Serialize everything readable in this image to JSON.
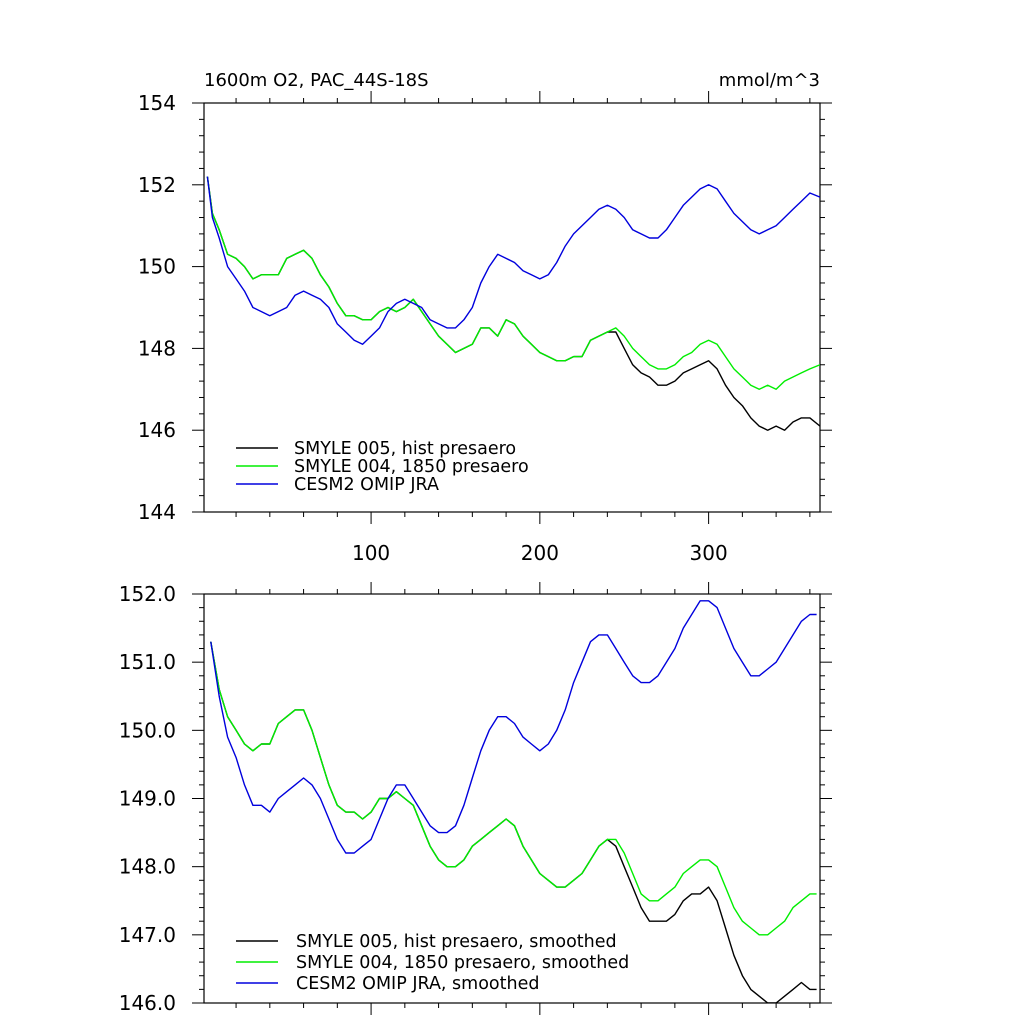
{
  "chart_data": [
    {
      "type": "line",
      "title": "1600m O2, PAC_44S-18S",
      "units": "mmol/m^3",
      "xlabel": "",
      "ylabel": "",
      "xlim": [
        1,
        366
      ],
      "ylim": [
        144,
        154
      ],
      "x_ticks": [
        100,
        200,
        300
      ],
      "x_tick_labels": [
        "100",
        "200",
        "300"
      ],
      "y_ticks": [
        144,
        146,
        148,
        150,
        152,
        154
      ],
      "y_tick_labels": [
        "144",
        "146",
        "148",
        "150",
        "152",
        "154"
      ],
      "legend_position": "bottom-left",
      "series": [
        {
          "name": "SMYLE 005, hist presaero",
          "color": "#000000",
          "x": [
            3,
            6,
            10,
            15,
            20,
            25,
            30,
            35,
            40,
            45,
            50,
            55,
            60,
            65,
            70,
            75,
            80,
            85,
            90,
            95,
            100,
            105,
            110,
            115,
            120,
            125,
            130,
            135,
            140,
            145,
            150,
            155,
            160,
            165,
            170,
            175,
            180,
            185,
            190,
            195,
            200,
            205,
            210,
            215,
            220,
            225,
            230,
            235,
            240,
            245,
            250,
            255,
            260,
            265,
            270,
            275,
            280,
            285,
            290,
            295,
            300,
            305,
            310,
            315,
            320,
            325,
            330,
            335,
            340,
            345,
            350,
            355,
            360,
            366
          ],
          "y": [
            152.2,
            151.3,
            150.9,
            150.3,
            150.2,
            150.0,
            149.7,
            149.8,
            149.8,
            149.8,
            150.2,
            150.3,
            150.4,
            150.2,
            149.8,
            149.5,
            149.1,
            148.8,
            148.8,
            148.7,
            148.7,
            148.9,
            149.0,
            148.9,
            149.0,
            149.2,
            148.9,
            148.6,
            148.3,
            148.1,
            147.9,
            148.0,
            148.1,
            148.5,
            148.5,
            148.3,
            148.7,
            148.6,
            148.3,
            148.1,
            147.9,
            147.8,
            147.7,
            147.7,
            147.8,
            147.8,
            148.2,
            148.3,
            148.4,
            148.4,
            148.0,
            147.6,
            147.4,
            147.3,
            147.1,
            147.1,
            147.2,
            147.4,
            147.5,
            147.6,
            147.7,
            147.5,
            147.1,
            146.8,
            146.6,
            146.3,
            146.1,
            146.0,
            146.1,
            146.0,
            146.2,
            146.3,
            146.3,
            146.1
          ]
        },
        {
          "name": "SMYLE 004, 1850 presaero",
          "color": "#00ee00",
          "x": [
            3,
            6,
            10,
            15,
            20,
            25,
            30,
            35,
            40,
            45,
            50,
            55,
            60,
            65,
            70,
            75,
            80,
            85,
            90,
            95,
            100,
            105,
            110,
            115,
            120,
            125,
            130,
            135,
            140,
            145,
            150,
            155,
            160,
            165,
            170,
            175,
            180,
            185,
            190,
            195,
            200,
            205,
            210,
            215,
            220,
            225,
            230,
            235,
            240,
            245,
            250,
            255,
            260,
            265,
            270,
            275,
            280,
            285,
            290,
            295,
            300,
            305,
            310,
            315,
            320,
            325,
            330,
            335,
            340,
            345,
            350,
            355,
            360,
            366
          ],
          "y": [
            152.2,
            151.3,
            150.9,
            150.3,
            150.2,
            150.0,
            149.7,
            149.8,
            149.8,
            149.8,
            150.2,
            150.3,
            150.4,
            150.2,
            149.8,
            149.5,
            149.1,
            148.8,
            148.8,
            148.7,
            148.7,
            148.9,
            149.0,
            148.9,
            149.0,
            149.2,
            148.9,
            148.6,
            148.3,
            148.1,
            147.9,
            148.0,
            148.1,
            148.5,
            148.5,
            148.3,
            148.7,
            148.6,
            148.3,
            148.1,
            147.9,
            147.8,
            147.7,
            147.7,
            147.8,
            147.8,
            148.2,
            148.3,
            148.4,
            148.5,
            148.3,
            148.0,
            147.8,
            147.6,
            147.5,
            147.5,
            147.6,
            147.8,
            147.9,
            148.1,
            148.2,
            148.1,
            147.8,
            147.5,
            147.3,
            147.1,
            147.0,
            147.1,
            147.0,
            147.2,
            147.3,
            147.4,
            147.5,
            147.6
          ]
        },
        {
          "name": "CESM2 OMIP JRA",
          "color": "#0000dd",
          "x": [
            3,
            6,
            10,
            15,
            20,
            25,
            30,
            35,
            40,
            45,
            50,
            55,
            60,
            65,
            70,
            75,
            80,
            85,
            90,
            95,
            100,
            105,
            110,
            115,
            120,
            125,
            130,
            135,
            140,
            145,
            150,
            155,
            160,
            165,
            170,
            175,
            180,
            185,
            190,
            195,
            200,
            205,
            210,
            215,
            220,
            225,
            230,
            235,
            240,
            245,
            250,
            255,
            260,
            265,
            270,
            275,
            280,
            285,
            290,
            295,
            300,
            305,
            310,
            315,
            320,
            325,
            330,
            335,
            340,
            345,
            350,
            355,
            360,
            366
          ],
          "y": [
            152.2,
            151.2,
            150.7,
            150.0,
            149.7,
            149.4,
            149.0,
            148.9,
            148.8,
            148.9,
            149.0,
            149.3,
            149.4,
            149.3,
            149.2,
            149.0,
            148.6,
            148.4,
            148.2,
            148.1,
            148.3,
            148.5,
            148.9,
            149.1,
            149.2,
            149.1,
            149.0,
            148.7,
            148.6,
            148.5,
            148.5,
            148.7,
            149.0,
            149.6,
            150.0,
            150.3,
            150.2,
            150.1,
            149.9,
            149.8,
            149.7,
            149.8,
            150.1,
            150.5,
            150.8,
            151.0,
            151.2,
            151.4,
            151.5,
            151.4,
            151.2,
            150.9,
            150.8,
            150.7,
            150.7,
            150.9,
            151.2,
            151.5,
            151.7,
            151.9,
            152.0,
            151.9,
            151.6,
            151.3,
            151.1,
            150.9,
            150.8,
            150.9,
            151.0,
            151.2,
            151.4,
            151.6,
            151.8,
            151.7
          ]
        }
      ]
    },
    {
      "type": "line",
      "title": "",
      "xlabel": "",
      "ylabel": "",
      "xlim": [
        1,
        366
      ],
      "ylim": [
        146.0,
        152.0
      ],
      "x_ticks": [
        100,
        200,
        300
      ],
      "x_tick_labels": [
        "",
        "",
        ""
      ],
      "y_ticks": [
        146,
        147,
        148,
        149,
        150,
        151,
        152
      ],
      "y_tick_labels": [
        "146.0",
        "147.0",
        "148.0",
        "149.0",
        "150.0",
        "151.0",
        "152.0"
      ],
      "legend_position": "bottom-left",
      "series": [
        {
          "name": "SMYLE 005, hist presaero, smoothed",
          "color": "#000000",
          "x": [
            5,
            10,
            15,
            20,
            25,
            30,
            35,
            40,
            45,
            50,
            55,
            60,
            65,
            70,
            75,
            80,
            85,
            90,
            95,
            100,
            105,
            110,
            115,
            120,
            125,
            130,
            135,
            140,
            145,
            150,
            155,
            160,
            165,
            170,
            175,
            180,
            185,
            190,
            195,
            200,
            205,
            210,
            215,
            220,
            225,
            230,
            235,
            240,
            245,
            250,
            255,
            260,
            265,
            270,
            275,
            280,
            285,
            290,
            295,
            300,
            305,
            310,
            315,
            320,
            325,
            330,
            335,
            340,
            345,
            350,
            355,
            360,
            364
          ],
          "y": [
            151.3,
            150.6,
            150.2,
            150.0,
            149.8,
            149.7,
            149.8,
            149.8,
            150.1,
            150.2,
            150.3,
            150.3,
            150.0,
            149.6,
            149.2,
            148.9,
            148.8,
            148.8,
            148.7,
            148.8,
            149.0,
            149.0,
            149.1,
            149.0,
            148.9,
            148.6,
            148.3,
            148.1,
            148.0,
            148.0,
            148.1,
            148.3,
            148.4,
            148.5,
            148.6,
            148.7,
            148.6,
            148.3,
            148.1,
            147.9,
            147.8,
            147.7,
            147.7,
            147.8,
            147.9,
            148.1,
            148.3,
            148.4,
            148.3,
            148.0,
            147.7,
            147.4,
            147.2,
            147.2,
            147.2,
            147.3,
            147.5,
            147.6,
            147.6,
            147.7,
            147.5,
            147.1,
            146.7,
            146.4,
            146.2,
            146.1,
            146.0,
            146.0,
            146.1,
            146.2,
            146.3,
            146.2,
            146.2
          ]
        },
        {
          "name": "SMYLE 004, 1850 presaero, smoothed",
          "color": "#00ee00",
          "x": [
            5,
            10,
            15,
            20,
            25,
            30,
            35,
            40,
            45,
            50,
            55,
            60,
            65,
            70,
            75,
            80,
            85,
            90,
            95,
            100,
            105,
            110,
            115,
            120,
            125,
            130,
            135,
            140,
            145,
            150,
            155,
            160,
            165,
            170,
            175,
            180,
            185,
            190,
            195,
            200,
            205,
            210,
            215,
            220,
            225,
            230,
            235,
            240,
            245,
            250,
            255,
            260,
            265,
            270,
            275,
            280,
            285,
            290,
            295,
            300,
            305,
            310,
            315,
            320,
            325,
            330,
            335,
            340,
            345,
            350,
            355,
            360,
            364
          ],
          "y": [
            151.3,
            150.6,
            150.2,
            150.0,
            149.8,
            149.7,
            149.8,
            149.8,
            150.1,
            150.2,
            150.3,
            150.3,
            150.0,
            149.6,
            149.2,
            148.9,
            148.8,
            148.8,
            148.7,
            148.8,
            149.0,
            149.0,
            149.1,
            149.0,
            148.9,
            148.6,
            148.3,
            148.1,
            148.0,
            148.0,
            148.1,
            148.3,
            148.4,
            148.5,
            148.6,
            148.7,
            148.6,
            148.3,
            148.1,
            147.9,
            147.8,
            147.7,
            147.7,
            147.8,
            147.9,
            148.1,
            148.3,
            148.4,
            148.4,
            148.2,
            147.9,
            147.6,
            147.5,
            147.5,
            147.6,
            147.7,
            147.9,
            148.0,
            148.1,
            148.1,
            148.0,
            147.7,
            147.4,
            147.2,
            147.1,
            147.0,
            147.0,
            147.1,
            147.2,
            147.4,
            147.5,
            147.6,
            147.6
          ]
        },
        {
          "name": "CESM2 OMIP JRA, smoothed",
          "color": "#0000dd",
          "x": [
            5,
            10,
            15,
            20,
            25,
            30,
            35,
            40,
            45,
            50,
            55,
            60,
            65,
            70,
            75,
            80,
            85,
            90,
            95,
            100,
            105,
            110,
            115,
            120,
            125,
            130,
            135,
            140,
            145,
            150,
            155,
            160,
            165,
            170,
            175,
            180,
            185,
            190,
            195,
            200,
            205,
            210,
            215,
            220,
            225,
            230,
            235,
            240,
            245,
            250,
            255,
            260,
            265,
            270,
            275,
            280,
            285,
            290,
            295,
            300,
            305,
            310,
            315,
            320,
            325,
            330,
            335,
            340,
            345,
            350,
            355,
            360,
            364
          ],
          "y": [
            151.3,
            150.5,
            149.9,
            149.6,
            149.2,
            148.9,
            148.9,
            148.8,
            149.0,
            149.1,
            149.2,
            149.3,
            149.2,
            149.0,
            148.7,
            148.4,
            148.2,
            148.2,
            148.3,
            148.4,
            148.7,
            149.0,
            149.2,
            149.2,
            149.0,
            148.8,
            148.6,
            148.5,
            148.5,
            148.6,
            148.9,
            149.3,
            149.7,
            150.0,
            150.2,
            150.2,
            150.1,
            149.9,
            149.8,
            149.7,
            149.8,
            150.0,
            150.3,
            150.7,
            151.0,
            151.3,
            151.4,
            151.4,
            151.2,
            151.0,
            150.8,
            150.7,
            150.7,
            150.8,
            151.0,
            151.2,
            151.5,
            151.7,
            151.9,
            151.9,
            151.8,
            151.5,
            151.2,
            151.0,
            150.8,
            150.8,
            150.9,
            151.0,
            151.2,
            151.4,
            151.6,
            151.7,
            151.7
          ]
        }
      ]
    }
  ]
}
